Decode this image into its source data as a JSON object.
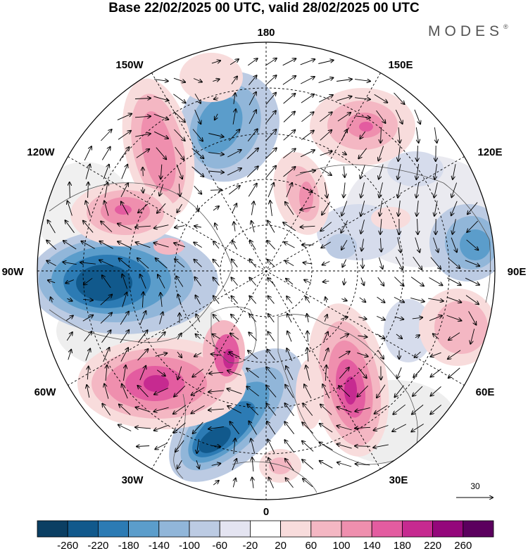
{
  "title": "Base 22/02/2025 00 UTC, valid 28/02/2025 00 UTC",
  "brand": "MODES",
  "brand_mark": "®",
  "longitude_labels": {
    "top": "180",
    "bottom": "0",
    "left": "90W",
    "right": "90E",
    "upper_left": "150W",
    "upper_right": "150E",
    "mid_upper_left": "120W",
    "mid_upper_right": "120E",
    "mid_lower_left": "60W",
    "mid_lower_right": "60E",
    "lower_left": "30W",
    "lower_right": "30E"
  },
  "reference_vector": {
    "label": "30"
  },
  "colorbar": {
    "ticks": [
      "-260",
      "-220",
      "-180",
      "-140",
      "-100",
      "-60",
      "-20",
      "20",
      "60",
      "100",
      "140",
      "180",
      "220",
      "260"
    ],
    "colors": [
      "#0b3f63",
      "#11598c",
      "#2c7bb4",
      "#5b9dcb",
      "#91b6d9",
      "#bccbe3",
      "#e4e4f1",
      "#ffffff",
      "#f8dcdc",
      "#f4b7c3",
      "#ef8fae",
      "#e35ca0",
      "#c62a90",
      "#94077b",
      "#5b005e"
    ]
  },
  "anomaly_centers": [
    {
      "lon": -95,
      "lat": 55,
      "value": -240
    },
    {
      "lon": -30,
      "lat": 50,
      "value": -220
    },
    {
      "lon": -160,
      "lat": 60,
      "value": -150
    },
    {
      "lon": 105,
      "lat": 58,
      "value": -160
    },
    {
      "lon": -55,
      "lat": 52,
      "value": 200
    },
    {
      "lon": 45,
      "lat": 55,
      "value": 190
    },
    {
      "lon": -130,
      "lat": 56,
      "value": 170
    },
    {
      "lon": -145,
      "lat": 50,
      "value": 140
    },
    {
      "lon": 160,
      "lat": 45,
      "value": 150
    },
    {
      "lon": 145,
      "lat": 68,
      "value": 120
    },
    {
      "lon": 60,
      "lat": 52,
      "value": 100
    }
  ]
}
